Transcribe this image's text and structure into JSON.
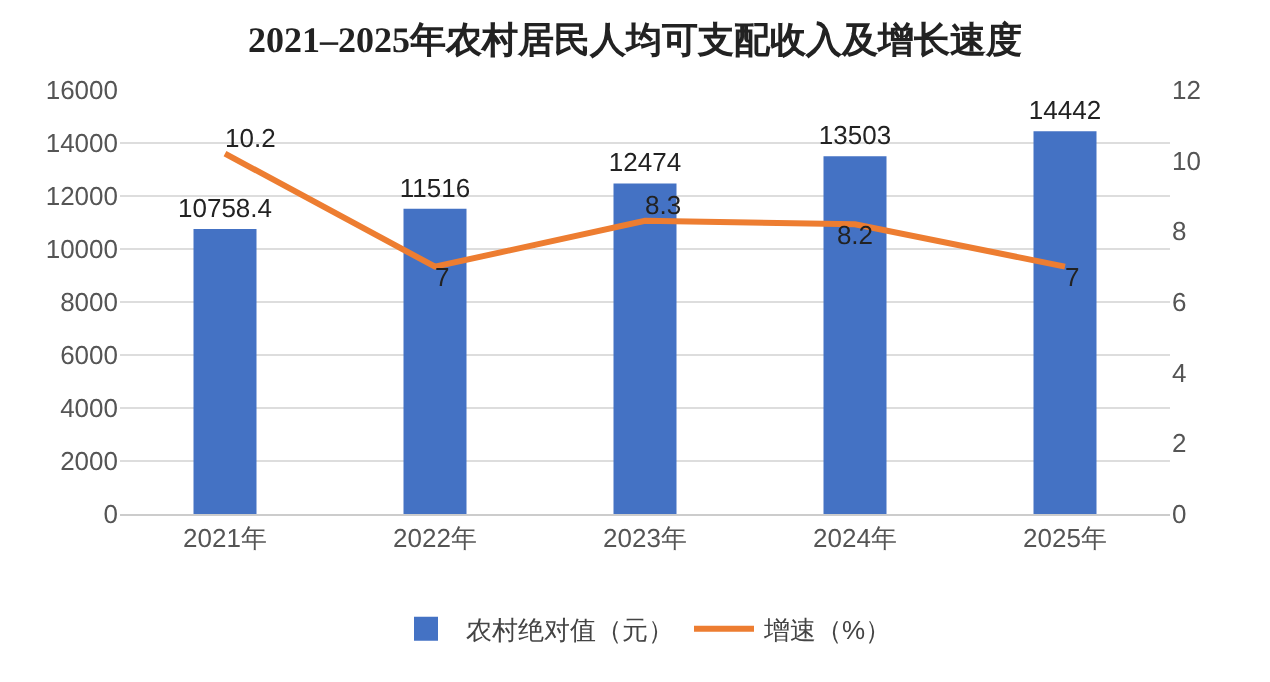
{
  "chart_data": {
    "type": "bar",
    "title": "2021–2025年农村居民人均可支配收入及增长速度",
    "categories": [
      "2021年",
      "2022年",
      "2023年",
      "2024年",
      "2025年"
    ],
    "series": [
      {
        "name": "农村绝对值（元）",
        "color": "#4472c4",
        "values": [
          10758.4,
          11516,
          12474,
          13503,
          14442
        ]
      },
      {
        "name": "增速（%）",
        "type": "line",
        "axis": "y2",
        "color": "#ed7d31",
        "values": [
          10.2,
          7,
          8.3,
          8.2,
          7
        ]
      }
    ],
    "ylim": [
      0,
      16000
    ],
    "yticks": [
      0,
      2000,
      4000,
      6000,
      8000,
      10000,
      12000,
      14000,
      16000
    ],
    "y2lim": [
      0,
      12
    ],
    "y2ticks": [
      0,
      2,
      4,
      6,
      8,
      10,
      12
    ],
    "data_labels": true,
    "grid": "y",
    "legend": "bottom",
    "marker": "none",
    "line_style": "solid"
  }
}
